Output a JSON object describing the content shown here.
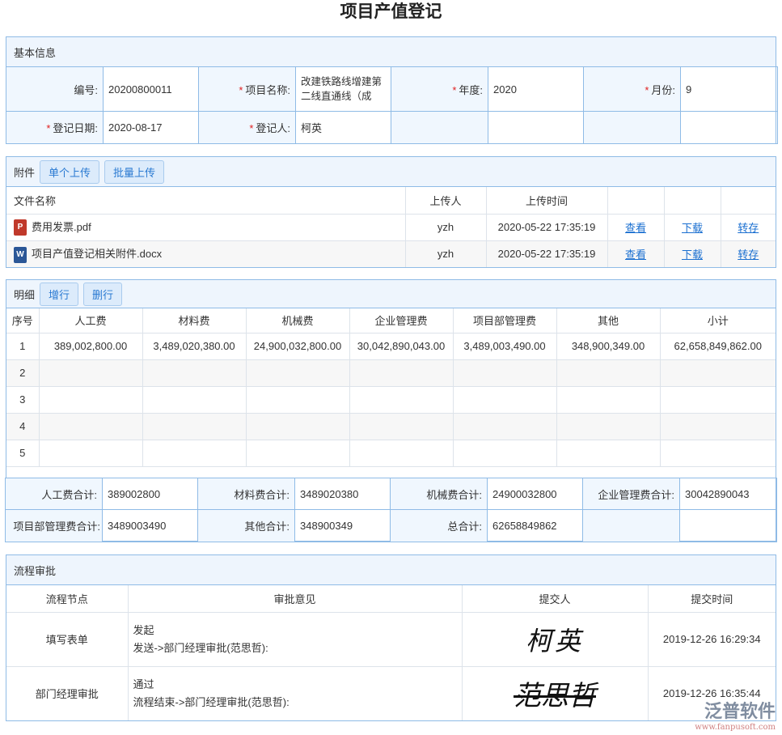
{
  "title": "项目产值登记",
  "basic": {
    "header": "基本信息",
    "fields": {
      "code_label": "编号:",
      "code": "20200800011",
      "project_label": "项目名称:",
      "project": "改建铁路线增建第二线直通线（成",
      "year_label": "年度:",
      "year": "2020",
      "month_label": "月份:",
      "month": "9",
      "date_label": "登记日期:",
      "date": "2020-08-17",
      "person_label": "登记人:",
      "person": "柯英"
    },
    "required_mark": "*"
  },
  "attach": {
    "header": "附件",
    "single_upload": "单个上传",
    "batch_upload": "批量上传",
    "columns": [
      "文件名称",
      "上传人",
      "上传时间"
    ],
    "files": [
      {
        "icon": "pdf-file-icon",
        "badge": "P",
        "name": "费用发票.pdf",
        "uploader": "yzh",
        "time": "2020-05-22 17:35:19",
        "view": "查看",
        "download": "下载",
        "transfer": "转存"
      },
      {
        "icon": "word-file-icon",
        "badge": "W",
        "name": "项目产值登记相关附件.docx",
        "uploader": "yzh",
        "time": "2020-05-22 17:35:19",
        "view": "查看",
        "download": "下载",
        "transfer": "转存"
      }
    ]
  },
  "detail": {
    "header": "明细",
    "add_row": "增行",
    "delete_row": "删行",
    "columns": [
      "序号",
      "人工费",
      "材料费",
      "机械费",
      "企业管理费",
      "项目部管理费",
      "其他",
      "小计"
    ],
    "rows": [
      [
        "1",
        "389,002,800.00",
        "3,489,020,380.00",
        "24,900,032,800.00",
        "30,042,890,043.00",
        "3,489,003,490.00",
        "348,900,349.00",
        "62,658,849,862.00"
      ],
      [
        "2",
        "",
        "",
        "",
        "",
        "",
        "",
        ""
      ],
      [
        "3",
        "",
        "",
        "",
        "",
        "",
        "",
        ""
      ],
      [
        "4",
        "",
        "",
        "",
        "",
        "",
        "",
        ""
      ],
      [
        "5",
        "",
        "",
        "",
        "",
        "",
        "",
        ""
      ]
    ],
    "totals": {
      "labor_label": "人工费合计:",
      "labor": "389002800",
      "material_label": "材料费合计:",
      "material": "3489020380",
      "machine_label": "机械费合计:",
      "machine": "24900032800",
      "corp_label": "企业管理费合计:",
      "corp": "30042890043",
      "proj_label": "项目部管理费合计:",
      "proj": "3489003490",
      "other_label": "其他合计:",
      "other": "348900349",
      "total_label": "总合计:",
      "total": "62658849862"
    }
  },
  "flow": {
    "header": "流程审批",
    "columns": [
      "流程节点",
      "审批意见",
      "提交人",
      "提交时间"
    ],
    "rows": [
      {
        "node": "填写表单",
        "opinion": "发起",
        "next": "发送->部门经理审批(范思哲):",
        "signer": "柯英",
        "time": "2019-12-26 16:29:34"
      },
      {
        "node": "部门经理审批",
        "opinion": "通过",
        "next": "流程结束->部门经理审批(范思哲):",
        "signer": "范思哲",
        "time": "2019-12-26 16:35:44"
      }
    ]
  },
  "watermark": {
    "brand": "泛普软件",
    "url": "www.fanpusoft.com"
  },
  "colors": {
    "border": "#8fbbe6",
    "header_bg": "#eef5fd",
    "link": "#1a6fd0",
    "required": "#e02020"
  }
}
